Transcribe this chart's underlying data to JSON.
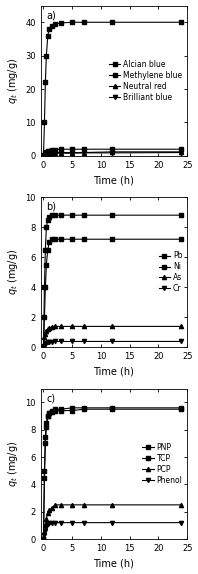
{
  "panel_a": {
    "label": "a)",
    "xlabel": "Time (h)",
    "ylim": [
      0,
      45
    ],
    "yticks": [
      0,
      10,
      20,
      30,
      40
    ],
    "xlim": [
      -0.5,
      25
    ],
    "xticks": [
      0,
      5,
      10,
      15,
      20,
      25
    ],
    "series": [
      {
        "name": "Alcian blue",
        "marker": "s",
        "mfc": "black",
        "time": [
          0,
          0.17,
          0.33,
          0.5,
          0.75,
          1,
          1.5,
          2,
          3,
          5,
          7,
          12,
          24
        ],
        "values": [
          0,
          10,
          22,
          30,
          36,
          38,
          39,
          39.5,
          39.8,
          40,
          40,
          40,
          40
        ]
      },
      {
        "name": "Methylene blue",
        "marker": "s",
        "mfc": "black",
        "time": [
          0,
          0.17,
          0.33,
          0.5,
          0.75,
          1,
          1.5,
          2,
          3,
          5,
          7,
          12,
          24
        ],
        "values": [
          0,
          0.4,
          0.8,
          1.1,
          1.4,
          1.6,
          1.8,
          1.9,
          2.0,
          2.0,
          2.0,
          2.0,
          2.0
        ]
      },
      {
        "name": "Neutral red",
        "marker": "^",
        "mfc": "black",
        "time": [
          0,
          0.17,
          0.33,
          0.5,
          0.75,
          1,
          1.5,
          2,
          3,
          5,
          7,
          12,
          24
        ],
        "values": [
          0,
          0.2,
          0.4,
          0.6,
          0.8,
          1.0,
          1.0,
          1.0,
          1.0,
          1.0,
          1.0,
          1.2,
          1.2
        ]
      },
      {
        "name": "Brilliant blue",
        "marker": "v",
        "mfc": "black",
        "time": [
          0,
          0.17,
          0.33,
          0.5,
          0.75,
          1,
          1.5,
          2,
          3,
          5,
          7,
          12,
          24
        ],
        "values": [
          0,
          0.1,
          0.2,
          0.3,
          0.5,
          0.6,
          0.7,
          0.8,
          0.8,
          0.8,
          0.9,
          0.9,
          1.0
        ]
      }
    ]
  },
  "panel_b": {
    "label": "b)",
    "xlabel": "Time (h)",
    "ylim": [
      0,
      10
    ],
    "yticks": [
      0,
      2,
      4,
      6,
      8,
      10
    ],
    "xlim": [
      -0.5,
      25
    ],
    "xticks": [
      0,
      5,
      10,
      15,
      20,
      25
    ],
    "series": [
      {
        "name": "Pb",
        "marker": "s",
        "mfc": "black",
        "time": [
          0,
          0.17,
          0.33,
          0.5,
          0.75,
          1,
          1.5,
          2,
          3,
          5,
          7,
          12,
          24
        ],
        "values": [
          0,
          4,
          6.5,
          8.0,
          8.5,
          8.7,
          8.8,
          8.8,
          8.8,
          8.8,
          8.8,
          8.8,
          8.8
        ]
      },
      {
        "name": "Ni",
        "marker": "s",
        "mfc": "black",
        "time": [
          0,
          0.17,
          0.33,
          0.5,
          0.75,
          1,
          1.5,
          2,
          3,
          5,
          7,
          12,
          24
        ],
        "values": [
          0,
          2,
          4,
          5.5,
          6.5,
          7.0,
          7.2,
          7.2,
          7.2,
          7.2,
          7.2,
          7.2,
          7.2
        ]
      },
      {
        "name": "As",
        "marker": "^",
        "mfc": "black",
        "time": [
          0,
          0.17,
          0.33,
          0.5,
          0.75,
          1,
          1.5,
          2,
          3,
          5,
          7,
          12,
          24
        ],
        "values": [
          0,
          0.7,
          0.9,
          1.1,
          1.2,
          1.3,
          1.35,
          1.4,
          1.4,
          1.4,
          1.4,
          1.4,
          1.4
        ]
      },
      {
        "name": "Cr",
        "marker": "v",
        "mfc": "black",
        "time": [
          0,
          0.17,
          0.33,
          0.5,
          0.75,
          1,
          1.5,
          2,
          3,
          5,
          7,
          12,
          24
        ],
        "values": [
          0,
          0.1,
          0.2,
          0.28,
          0.33,
          0.36,
          0.38,
          0.4,
          0.4,
          0.4,
          0.4,
          0.4,
          0.4
        ]
      }
    ]
  },
  "panel_c": {
    "label": "c)",
    "xlabel": "Time (h)",
    "ylim": [
      0,
      11
    ],
    "yticks": [
      0,
      2,
      4,
      6,
      8,
      10
    ],
    "xlim": [
      -0.5,
      25
    ],
    "xticks": [
      0,
      5,
      10,
      15,
      20,
      25
    ],
    "series": [
      {
        "name": "PNP",
        "marker": "s",
        "mfc": "black",
        "time": [
          0,
          0.17,
          0.33,
          0.5,
          0.75,
          1,
          1.5,
          2,
          3,
          5,
          7,
          12,
          24
        ],
        "values": [
          0,
          5,
          7.5,
          8.5,
          9.0,
          9.2,
          9.4,
          9.5,
          9.5,
          9.6,
          9.6,
          9.6,
          9.6
        ]
      },
      {
        "name": "TCP",
        "marker": "s",
        "mfc": "black",
        "time": [
          0,
          0.17,
          0.33,
          0.5,
          0.75,
          1,
          1.5,
          2,
          3,
          5,
          7,
          12,
          24
        ],
        "values": [
          0,
          4.5,
          7.0,
          8.2,
          9.0,
          9.2,
          9.3,
          9.4,
          9.4,
          9.4,
          9.5,
          9.5,
          9.5
        ]
      },
      {
        "name": "PCP",
        "marker": "^",
        "mfc": "black",
        "time": [
          0,
          0.17,
          0.33,
          0.5,
          0.75,
          1,
          1.5,
          2,
          3,
          5,
          7,
          12,
          24
        ],
        "values": [
          0,
          0.5,
          1.0,
          1.5,
          1.9,
          2.1,
          2.3,
          2.5,
          2.5,
          2.5,
          2.5,
          2.5,
          2.5
        ]
      },
      {
        "name": "Phenol",
        "marker": "v",
        "mfc": "black",
        "time": [
          0,
          0.17,
          0.33,
          0.5,
          0.75,
          1,
          1.5,
          2,
          3,
          5,
          7,
          12,
          24
        ],
        "values": [
          0,
          0.3,
          0.6,
          0.9,
          1.1,
          1.2,
          1.2,
          1.2,
          1.2,
          1.2,
          1.2,
          1.2,
          1.2
        ]
      }
    ]
  },
  "line_color": "#000000",
  "marker_size": 3,
  "line_width": 0.8,
  "tick_fontsize": 6,
  "axis_label_fontsize": 7,
  "legend_fontsize": 5.5,
  "annot_fontsize": 7
}
